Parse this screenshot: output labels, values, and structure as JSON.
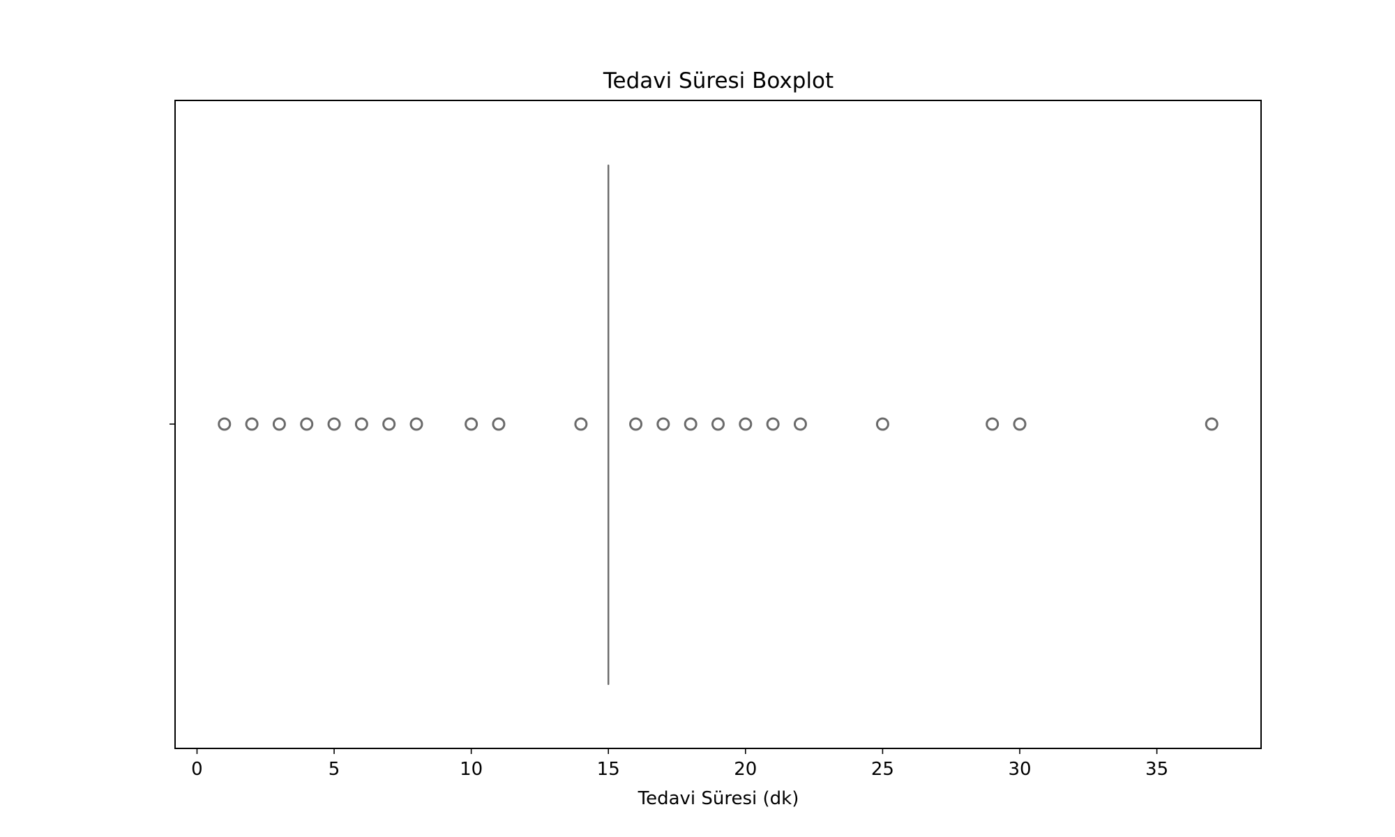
{
  "chart_data": {
    "type": "boxplot",
    "title": "Tedavi Süresi Boxplot",
    "xlabel": "Tedavi Süresi (dk)",
    "ylabel": "",
    "xlim": [
      -0.8,
      38.8
    ],
    "xticks": [
      0,
      5,
      10,
      15,
      20,
      25,
      30,
      35
    ],
    "xtick_labels": [
      "0",
      "5",
      "10",
      "15",
      "20",
      "25",
      "30",
      "35"
    ],
    "box": {
      "q1": 15,
      "median": 15,
      "q3": 15,
      "whisker_low": 15,
      "whisker_high": 15
    },
    "outliers": [
      1,
      2,
      3,
      4,
      5,
      6,
      7,
      8,
      10,
      11,
      14,
      16,
      17,
      18,
      19,
      20,
      21,
      22,
      25,
      29,
      30,
      37
    ],
    "grid": false,
    "colors": {
      "box_line": "#6a6a6a",
      "outlier_edge": "#6a6a6a",
      "frame": "#000000"
    }
  }
}
